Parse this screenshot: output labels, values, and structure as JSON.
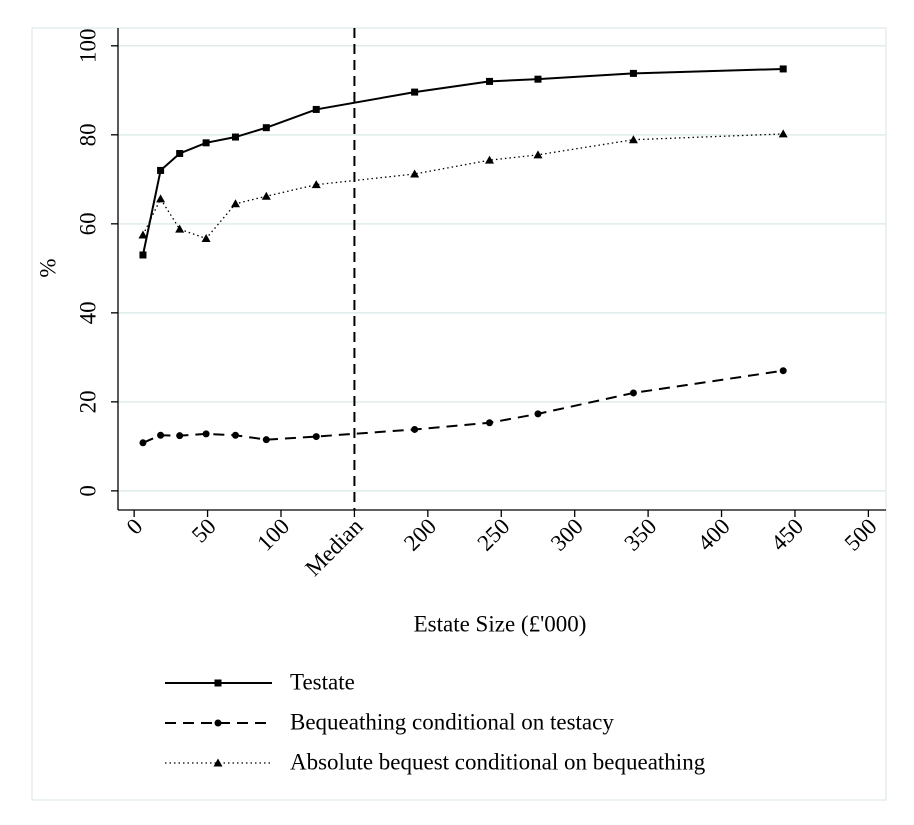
{
  "chart_data": {
    "type": "line",
    "x_label": "Estate Size (£'000)",
    "y_label": "%",
    "x": [
      6,
      18,
      31,
      49,
      69,
      90,
      124,
      191,
      242,
      275,
      340,
      442
    ],
    "series": [
      {
        "name": "Testate",
        "color": "#000000",
        "line_style": "solid",
        "marker": "square",
        "values": [
          53,
          72,
          75.8,
          78.2,
          79.5,
          81.6,
          85.7,
          89.6,
          92,
          92.5,
          93.8,
          94.8
        ]
      },
      {
        "name": "Bequeathing conditional on testacy",
        "color": "#000000",
        "line_style": "dashed",
        "marker": "circle",
        "values": [
          10.8,
          12.5,
          12.4,
          12.8,
          12.5,
          11.5,
          12.2,
          13.8,
          15.3,
          17.3,
          22,
          27
        ]
      },
      {
        "name": "Absolute bequest conditional on bequeathing",
        "color": "#000000",
        "line_style": "dotted",
        "marker": "triangle",
        "values": [
          57.5,
          65.6,
          58.8,
          56.7,
          64.5,
          66.2,
          68.8,
          71.2,
          74.3,
          75.5,
          78.9,
          80.2
        ]
      }
    ],
    "vline": 150,
    "xlim": [
      -11,
      512
    ],
    "ylim": [
      -4.3,
      104
    ],
    "xticks": [
      0,
      50,
      100,
      {
        "value": 150,
        "label": "Median"
      },
      200,
      250,
      300,
      350,
      400,
      450,
      500
    ],
    "yticks": [
      0,
      20,
      40,
      60,
      80,
      100
    ],
    "grid": true,
    "grid_color": "#dfeceb"
  }
}
